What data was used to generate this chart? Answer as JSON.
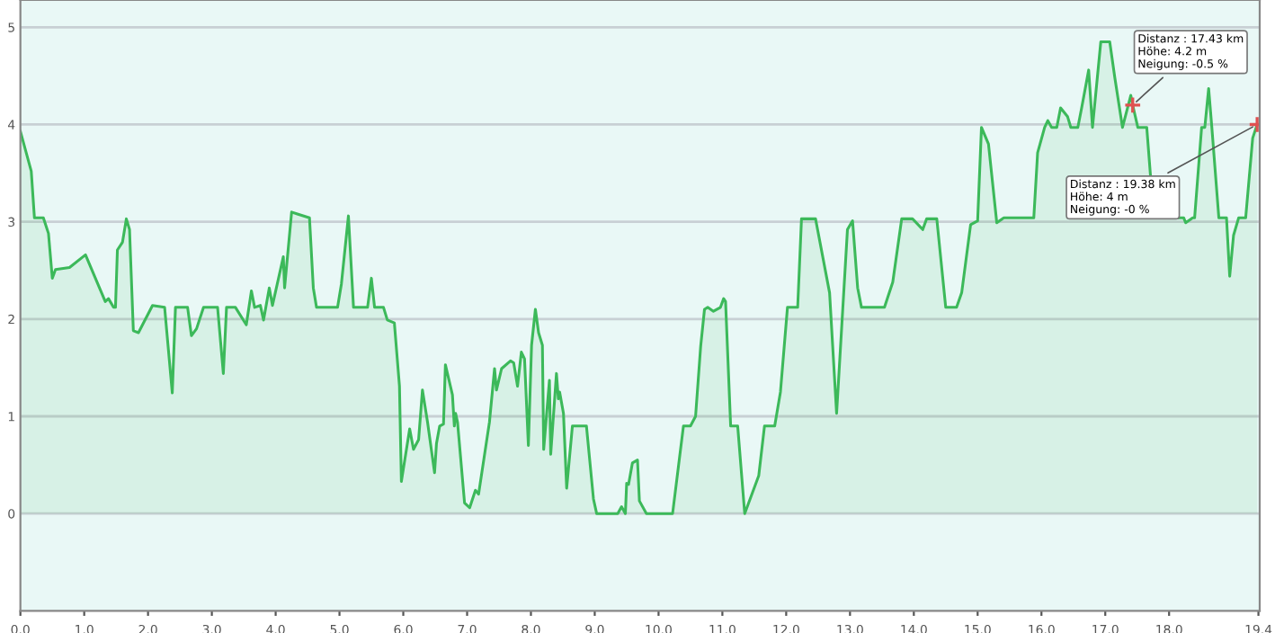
{
  "chart_data": {
    "type": "area",
    "xlim": [
      0,
      19.42
    ],
    "ylim": [
      -1,
      5.28
    ],
    "xticks": [
      {
        "value": 0,
        "label": "0.0"
      },
      {
        "value": 1,
        "label": "1.0"
      },
      {
        "value": 2,
        "label": "2.0"
      },
      {
        "value": 3,
        "label": "3.0"
      },
      {
        "value": 4,
        "label": "4.0"
      },
      {
        "value": 5,
        "label": "5.0"
      },
      {
        "value": 6,
        "label": "6.0"
      },
      {
        "value": 7,
        "label": "7.0"
      },
      {
        "value": 8,
        "label": "8.0"
      },
      {
        "value": 9,
        "label": "9.0"
      },
      {
        "value": 10,
        "label": "10.0"
      },
      {
        "value": 11,
        "label": "11.0"
      },
      {
        "value": 12,
        "label": "12.0"
      },
      {
        "value": 13,
        "label": "13.0"
      },
      {
        "value": 14,
        "label": "14.0"
      },
      {
        "value": 15,
        "label": "15.0"
      },
      {
        "value": 16,
        "label": "16.0"
      },
      {
        "value": 17,
        "label": "17.0"
      },
      {
        "value": 18,
        "label": "18.0"
      },
      {
        "value": 19.4,
        "label": "19.4"
      }
    ],
    "yticks": [
      0,
      1,
      2,
      3,
      4,
      5
    ],
    "grid": "y",
    "line_style": "solid",
    "series": [
      {
        "color": "#3cb95a",
        "x": [
          0,
          0.17,
          0.22,
          0.36,
          0.44,
          0.5,
          0.55,
          0.77,
          1.02,
          1.33,
          1.38,
          1.46,
          1.49,
          1.52,
          1.6,
          1.66,
          1.71,
          1.77,
          1.85,
          2.07,
          2.26,
          2.38,
          2.43,
          2.62,
          2.68,
          2.76,
          2.87,
          3.09,
          3.18,
          3.23,
          3.37,
          3.54,
          3.62,
          3.67,
          3.76,
          3.81,
          3.9,
          3.95,
          4.12,
          4.14,
          4.25,
          4.34,
          4.53,
          4.59,
          4.64,
          4.97,
          5.03,
          5.14,
          5.22,
          5.44,
          5.5,
          5.55,
          5.69,
          5.75,
          5.86,
          5.94,
          5.97,
          6.1,
          6.16,
          6.24,
          6.3,
          6.38,
          6.49,
          6.52,
          6.57,
          6.63,
          6.66,
          6.77,
          6.8,
          6.82,
          6.85,
          6.96,
          7.04,
          7.13,
          7.18,
          7.35,
          7.43,
          7.46,
          7.54,
          7.68,
          7.73,
          7.79,
          7.85,
          7.9,
          7.96,
          8.01,
          8.07,
          8.12,
          8.18,
          8.2,
          8.29,
          8.31,
          8.4,
          8.43,
          8.45,
          8.51,
          8.56,
          8.65,
          8.87,
          8.98,
          9.03,
          9.36,
          9.42,
          9.48,
          9.5,
          9.53,
          9.59,
          9.67,
          9.7,
          9.81,
          10.22,
          10.39,
          10.5,
          10.58,
          10.66,
          10.72,
          10.77,
          10.86,
          10.97,
          11.02,
          11.05,
          11.13,
          11.24,
          11.35,
          11.57,
          11.66,
          11.82,
          11.91,
          12.02,
          12.18,
          12.24,
          12.46,
          12.68,
          12.79,
          12.96,
          13.04,
          13.12,
          13.18,
          13.54,
          13.67,
          13.81,
          13.98,
          14.14,
          14.2,
          14.36,
          14.5,
          14.67,
          14.75,
          14.89,
          15.0,
          15.06,
          15.17,
          15.3,
          15.41,
          15.88,
          15.94,
          16.05,
          16.1,
          16.16,
          16.24,
          16.3,
          16.41,
          16.46,
          16.57,
          16.63,
          16.74,
          16.8,
          16.93,
          17.07,
          17.15,
          17.27,
          17.4,
          17.43,
          17.51,
          17.65,
          17.76,
          18.23,
          18.26,
          18.37,
          18.4,
          18.51,
          18.56,
          18.62,
          18.67,
          18.78,
          18.9,
          18.95,
          19.01,
          19.09,
          19.2,
          19.31,
          19.38
        ],
        "values": [
          3.93,
          3.52,
          3.04,
          3.04,
          2.88,
          2.42,
          2.51,
          2.53,
          2.66,
          2.18,
          2.21,
          2.12,
          2.12,
          2.71,
          2.79,
          3.03,
          2.92,
          1.88,
          1.86,
          2.14,
          2.12,
          1.24,
          2.12,
          2.12,
          1.83,
          1.9,
          2.12,
          2.12,
          1.44,
          2.12,
          2.12,
          1.94,
          2.29,
          2.12,
          2.14,
          1.99,
          2.32,
          2.14,
          2.64,
          2.32,
          3.1,
          3.08,
          3.04,
          2.32,
          2.12,
          2.12,
          2.36,
          3.06,
          2.12,
          2.12,
          2.42,
          2.12,
          2.12,
          1.99,
          1.96,
          1.31,
          0.33,
          0.87,
          0.66,
          0.76,
          1.27,
          0.94,
          0.42,
          0.72,
          0.9,
          0.92,
          1.53,
          1.22,
          0.9,
          1.03,
          0.94,
          0.11,
          0.06,
          0.24,
          0.2,
          0.94,
          1.49,
          1.27,
          1.49,
          1.57,
          1.55,
          1.31,
          1.66,
          1.59,
          0.7,
          1.73,
          2.1,
          1.86,
          1.73,
          0.66,
          1.37,
          0.61,
          1.44,
          1.18,
          1.25,
          1.03,
          0.26,
          0.9,
          0.9,
          0.15,
          0,
          0,
          0.07,
          0,
          0.31,
          0.3,
          0.52,
          0.55,
          0.13,
          0,
          0,
          0.9,
          0.9,
          1.0,
          1.72,
          2.1,
          2.12,
          2.08,
          2.12,
          2.21,
          2.18,
          0.9,
          0.9,
          0,
          0.39,
          0.9,
          0.9,
          1.25,
          2.12,
          2.12,
          3.03,
          3.03,
          2.27,
          1.03,
          2.92,
          3.01,
          2.32,
          2.12,
          2.12,
          2.38,
          3.03,
          3.03,
          2.92,
          3.03,
          3.03,
          2.12,
          2.12,
          2.27,
          2.97,
          3.01,
          3.97,
          3.8,
          2.99,
          3.04,
          3.04,
          3.71,
          3.97,
          4.04,
          3.97,
          3.97,
          4.17,
          4.08,
          3.97,
          3.97,
          4.17,
          4.56,
          3.97,
          4.85,
          4.85,
          4.48,
          3.97,
          4.3,
          4.2,
          3.97,
          3.97,
          3.04,
          3.04,
          2.99,
          3.04,
          3.04,
          3.97,
          3.97,
          4.37,
          3.97,
          3.04,
          3.04,
          2.44,
          2.86,
          3.04,
          3.04,
          3.86,
          4.0
        ]
      }
    ],
    "annotations": [
      {
        "text": "Distanz : 17.43 km\nHöhe: 4.2 m\nNeigung: -0.5 %",
        "x": 17.43,
        "y": 4.2
      },
      {
        "text": "Distanz : 19.38 km\nHöhe: 4 m\nNeigung: -0 %",
        "x": 19.38,
        "y": 4.0
      }
    ]
  }
}
